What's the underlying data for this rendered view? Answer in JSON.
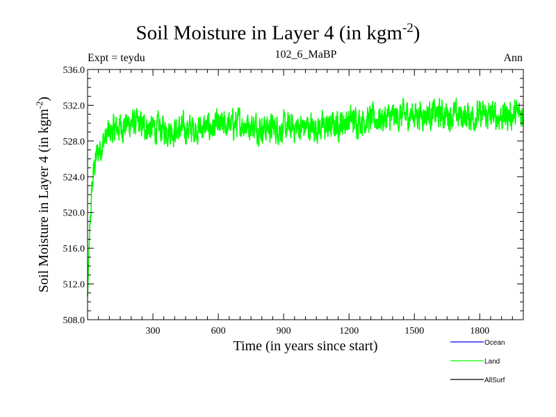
{
  "chart_data": {
    "type": "line",
    "title": "Soil Moisture in Layer 4 (in kgm",
    "title_exponent": "-2",
    "title_suffix": ")",
    "experiment": "Expt = teydu",
    "subtitle": "102_6_MaBP",
    "season": "Ann",
    "xlabel": "Time (in years since start)",
    "ylabel": "Soil Moisture in Layer 4 (in kgm",
    "ylabel_exponent": "-2",
    "ylabel_suffix": ")",
    "xlim": [
      0,
      2000
    ],
    "ylim": [
      508.0,
      536.0
    ],
    "x_ticks": [
      300,
      600,
      900,
      1200,
      1500,
      1800
    ],
    "y_ticks": [
      508.0,
      512.0,
      516.0,
      520.0,
      524.0,
      528.0,
      532.0,
      536.0
    ],
    "series": [
      {
        "name": "Land",
        "color": "#00ff00",
        "x": [
          0,
          10,
          20,
          30,
          40,
          50,
          60,
          70,
          80,
          90,
          100,
          150,
          200,
          300,
          400,
          500,
          600,
          700,
          800,
          900,
          1000,
          1100,
          1200,
          1300,
          1400,
          1500,
          1600,
          1700,
          1800,
          1900,
          2000
        ],
        "values": [
          510.5,
          518.0,
          522.5,
          525.0,
          526.2,
          526.8,
          527.3,
          527.8,
          528.2,
          528.6,
          528.9,
          529.6,
          530.0,
          529.4,
          529.2,
          529.4,
          529.6,
          530.0,
          529.5,
          529.4,
          529.6,
          529.5,
          530.3,
          530.4,
          530.6,
          531.0,
          531.0,
          530.8,
          530.8,
          530.8,
          531.0
        ],
        "variability": 1.6
      },
      {
        "name": "Ocean",
        "color": "#0000ff",
        "values": []
      },
      {
        "name": "AllSurf",
        "color": "#000000",
        "values": []
      }
    ],
    "legend": [
      "Ocean",
      "Land",
      "AllSurf"
    ],
    "legend_position": "bottom-right",
    "grid": false
  }
}
